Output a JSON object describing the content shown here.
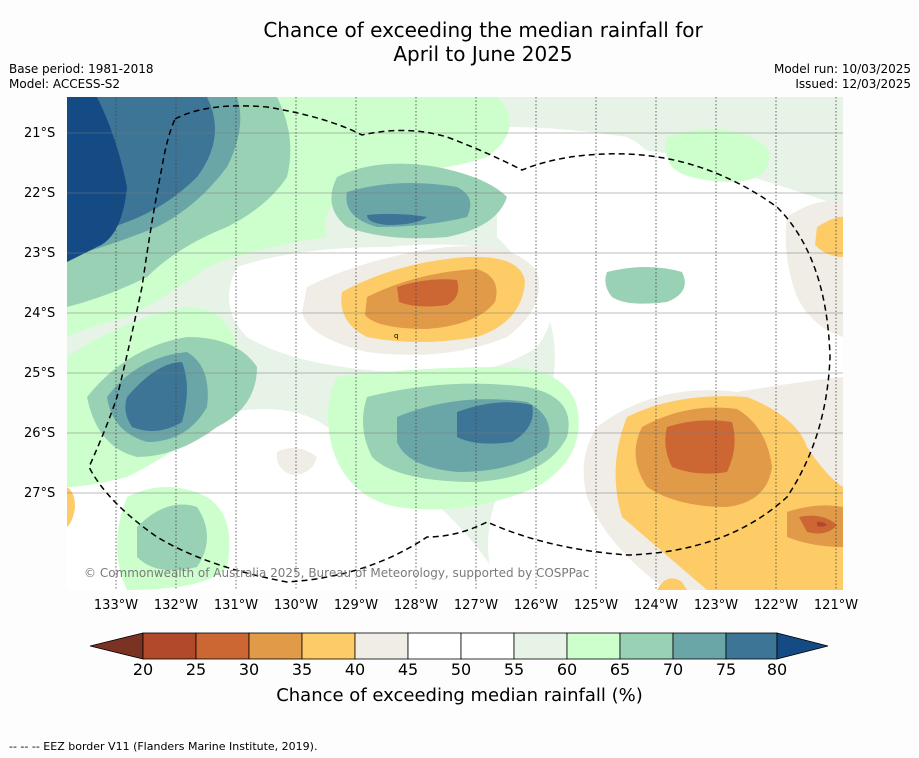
{
  "title": {
    "line1": "Chance of exceeding the median rainfall for",
    "line2": "April to June 2025"
  },
  "info_left": {
    "base_period": "Base period: 1981-2018",
    "model": "Model: ACCESS-S2"
  },
  "info_right": {
    "model_run": "Model run: 10/03/2025",
    "issued": "Issued: 12/03/2025"
  },
  "map": {
    "latitude_labels": [
      "21°S",
      "22°S",
      "23°S",
      "24°S",
      "25°S",
      "26°S",
      "27°S"
    ],
    "longitude_labels": [
      "133°W",
      "132°W",
      "131°W",
      "130°W",
      "129°W",
      "128°W",
      "127°W",
      "126°W",
      "125°W",
      "124°W",
      "123°W",
      "122°W",
      "121°W"
    ],
    "copyright": "© Commonwealth of Australia 2025, Bureau of Meteorology, supported by COSPPac",
    "small_marks": [
      "q"
    ],
    "colors": {
      "bin_20_25": "#b1492a",
      "bin_25_30": "#cc6633",
      "bin_30_35": "#e09a48",
      "bin_35_40": "#fdcc66",
      "bin_40_45": "#f0ece6",
      "bin_45_55": "#ffffff",
      "bin_55_60": "#e6f3e6",
      "bin_60_65": "#ccffcc",
      "bin_65_70": "#99d1b4",
      "bin_70_75": "#6aa6a8",
      "bin_75_80": "#3d7597",
      "bin_80_plus": "#144b85",
      "bin_below_20": "#7a3323"
    }
  },
  "colorbar": {
    "ticks": [
      "20",
      "25",
      "30",
      "35",
      "40",
      "45",
      "50",
      "55",
      "60",
      "65",
      "70",
      "75",
      "80"
    ],
    "label": "Chance of exceeding median rainfall (%)"
  },
  "footnote": "-- -- -- EEZ border V11 (Flanders Marine Institute, 2019)."
}
